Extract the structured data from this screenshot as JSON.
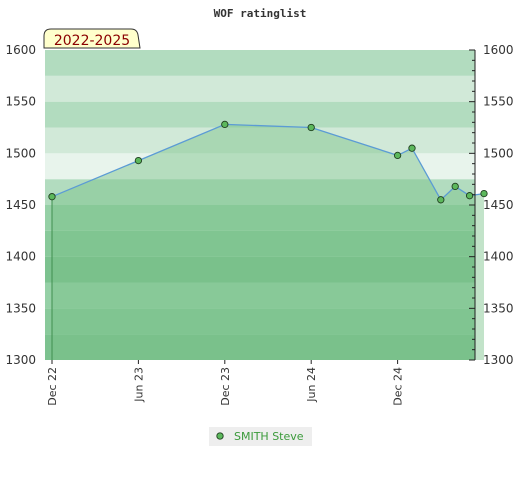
{
  "chart_data": {
    "type": "area",
    "title": "WOF ratinglist",
    "badge": "2022-2025",
    "xlabel": "",
    "ylabel": "",
    "ylim": [
      1300,
      1600
    ],
    "y_ticks": [
      1300,
      1350,
      1400,
      1450,
      1500,
      1550,
      1600
    ],
    "y_tick_labels": [
      "1300",
      "1350",
      "1400",
      "1450",
      "1500",
      "1550",
      "1600"
    ],
    "x_tick_labels": [
      "Dec 22",
      "Jun 23",
      "Dec 23",
      "Jun 24",
      "Dec 24"
    ],
    "x_ticks": [
      "2022-12",
      "2023-06",
      "2023-12",
      "2024-06",
      "2024-12"
    ],
    "series": [
      {
        "name": "SMITH Steve",
        "x": [
          "2022-12",
          "2023-06",
          "2023-12",
          "2024-06",
          "2024-12",
          "2025-01",
          "2025-03",
          "2025-04",
          "2025-05",
          "2025-06"
        ],
        "values": [
          1458,
          1493,
          1528,
          1525,
          1498,
          1505,
          1455,
          1468,
          1459,
          1461
        ]
      }
    ],
    "grid": true,
    "legend": "bottom-center",
    "colors": {
      "line": "#5b9bd5",
      "area": "#78c088",
      "marker": "#5cb85c",
      "legend_text": "#3a9a3a",
      "badge_bg": "#ffffcc"
    }
  }
}
